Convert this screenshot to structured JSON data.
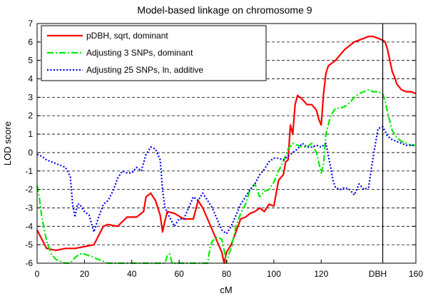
{
  "chart_data": {
    "type": "line",
    "title": "Model-based linkage on chromosome 9",
    "xlabel": "cM",
    "ylabel": "LOD score",
    "xlim": [
      0,
      160
    ],
    "ylim": [
      -6,
      7
    ],
    "x_ticks": [
      0,
      20,
      40,
      60,
      80,
      100,
      120,
      160
    ],
    "x_tick_labels": [
      "0",
      "20",
      "40",
      "60",
      "80",
      "100",
      "120",
      "160"
    ],
    "y_ticks": [
      -6,
      -5,
      -4,
      -3,
      -2,
      -1,
      0,
      1,
      2,
      3,
      4,
      5,
      6,
      7
    ],
    "y_tick_labels": [
      "-6",
      "-5",
      "-4",
      "-3",
      "-2",
      "-1",
      "0",
      "1",
      "2",
      "3",
      "4",
      "5",
      "6",
      "7"
    ],
    "grid": "horizontal dashed",
    "legend_position": "top-left",
    "marker_line": {
      "x": 146,
      "label": "DBH"
    },
    "colors": {
      "series1": "#ff0000",
      "series2": "#00ee00",
      "series3": "#0000ff"
    },
    "series": [
      {
        "name": "pDBH, sqrt, dominant",
        "style": "solid",
        "x": [
          0,
          4,
          8,
          12,
          16,
          20,
          24,
          26,
          28,
          30,
          34,
          38,
          42,
          45,
          46,
          48,
          50,
          52,
          53,
          54,
          55,
          58,
          62,
          66,
          68,
          70,
          72,
          74,
          76,
          78,
          79,
          80,
          81,
          82,
          84,
          86,
          88,
          90,
          92,
          94,
          96,
          98,
          100,
          102,
          104,
          105,
          106,
          107,
          108,
          109,
          110,
          111,
          112,
          114,
          116,
          118,
          119,
          120,
          121,
          122,
          123,
          124,
          126,
          128,
          130,
          132,
          134,
          136,
          138,
          140,
          142,
          144,
          146,
          147,
          148,
          149,
          150,
          151,
          152,
          154,
          156,
          158,
          160
        ],
        "y": [
          -4.2,
          -5.2,
          -5.3,
          -5.2,
          -5.2,
          -5.1,
          -5.0,
          -4.5,
          -4.0,
          -3.9,
          -4.0,
          -3.5,
          -3.5,
          -3.2,
          -2.4,
          -2.2,
          -2.6,
          -3.4,
          -4.3,
          -3.7,
          -3.2,
          -3.3,
          -3.6,
          -3.6,
          -2.6,
          -3.0,
          -3.6,
          -4.2,
          -4.8,
          -5.4,
          -6.0,
          -5.4,
          -5.2,
          -5.0,
          -4.3,
          -3.6,
          -3.5,
          -3.3,
          -3.2,
          -3.0,
          -3.2,
          -2.8,
          -2.9,
          -1.5,
          -1.2,
          -0.5,
          -0.4,
          1.5,
          1.0,
          2.6,
          3.1,
          3.0,
          2.9,
          2.6,
          2.6,
          2.3,
          1.8,
          1.5,
          3.2,
          4.3,
          4.7,
          4.8,
          5.0,
          5.3,
          5.6,
          5.8,
          6.0,
          6.1,
          6.2,
          6.3,
          6.3,
          6.2,
          6.1,
          6.0,
          5.6,
          5.0,
          4.4,
          4.1,
          3.7,
          3.4,
          3.3,
          3.3,
          3.2
        ]
      },
      {
        "name": "Adjusting 3 SNPs, dominant",
        "style": "dashdot",
        "x": [
          0,
          1,
          2,
          4,
          6,
          8,
          10,
          12,
          14,
          16,
          18,
          20,
          24,
          28,
          30,
          54,
          55,
          56,
          57,
          72,
          73,
          74,
          76,
          78,
          79,
          80,
          81,
          82,
          84,
          86,
          88,
          90,
          92,
          94,
          96,
          98,
          100,
          102,
          104,
          106,
          108,
          110,
          112,
          114,
          116,
          118,
          120,
          121,
          122,
          124,
          126,
          128,
          130,
          132,
          134,
          136,
          138,
          140,
          142,
          144,
          146,
          147,
          148,
          150,
          152,
          154,
          156,
          158,
          160
        ],
        "y": [
          -1.8,
          -2.5,
          -3.5,
          -4.8,
          -5.5,
          -5.8,
          -5.9,
          -6.0,
          -6.0,
          -5.7,
          -5.5,
          -5.5,
          -5.7,
          -5.9,
          -6.0,
          -6.0,
          -5.6,
          -5.5,
          -6.0,
          -6.0,
          -5.2,
          -4.8,
          -4.6,
          -4.7,
          -5.3,
          -6.0,
          -5.5,
          -5.2,
          -4.0,
          -3.3,
          -2.8,
          -2.0,
          -1.7,
          -2.4,
          -2.1,
          -2.0,
          -1.6,
          -1.0,
          -0.5,
          0.2,
          0.5,
          0.4,
          0.3,
          0.3,
          0.5,
          0.0,
          -1.1,
          -0.6,
          1.0,
          2.0,
          2.4,
          2.4,
          2.5,
          2.7,
          3.0,
          3.2,
          3.3,
          3.4,
          3.3,
          3.3,
          3.2,
          2.8,
          2.2,
          1.2,
          0.8,
          0.6,
          0.5,
          0.4,
          0.4
        ]
      },
      {
        "name": "Adjusting 25 SNPs, ln, additive",
        "style": "dotted",
        "x": [
          0,
          2,
          4,
          6,
          8,
          10,
          12,
          14,
          15,
          16,
          17,
          18,
          20,
          22,
          24,
          26,
          28,
          30,
          32,
          34,
          36,
          38,
          40,
          42,
          44,
          46,
          48,
          50,
          52,
          53,
          54,
          56,
          58,
          60,
          62,
          64,
          66,
          68,
          70,
          72,
          74,
          76,
          78,
          80,
          82,
          84,
          86,
          88,
          90,
          92,
          94,
          96,
          98,
          100,
          102,
          104,
          106,
          108,
          110,
          112,
          114,
          116,
          118,
          120,
          122,
          124,
          125,
          126,
          128,
          130,
          132,
          134,
          136,
          138,
          140,
          142,
          144,
          146,
          148,
          150,
          152,
          154,
          156,
          158,
          160
        ],
        "y": [
          -0.1,
          -0.2,
          -0.4,
          -0.5,
          -0.6,
          -0.7,
          -0.8,
          -1.3,
          -2.8,
          -3.5,
          -2.8,
          -2.8,
          -3.2,
          -3.4,
          -4.3,
          -3.5,
          -2.8,
          -2.6,
          -2.1,
          -1.4,
          -1.0,
          -1.1,
          -1.1,
          -0.8,
          -1.0,
          -0.1,
          0.3,
          0.2,
          -0.4,
          -2.0,
          -3.0,
          -3.5,
          -4.0,
          -3.6,
          -3.6,
          -3.0,
          -2.4,
          -2.6,
          -2.2,
          -2.6,
          -3.0,
          -3.6,
          -4.2,
          -4.4,
          -4.0,
          -3.4,
          -2.8,
          -2.4,
          -2.0,
          -1.7,
          -1.2,
          -0.9,
          -0.5,
          -0.3,
          -0.3,
          -0.4,
          -0.2,
          0.0,
          0.2,
          0.5,
          0.3,
          0.3,
          0.4,
          0.3,
          0.5,
          -0.8,
          -1.5,
          -1.9,
          -2.0,
          -1.9,
          -2.0,
          -2.3,
          -1.7,
          -2.0,
          -1.9,
          -0.2,
          1.3,
          1.4,
          0.9,
          0.7,
          0.6,
          0.5,
          0.4,
          0.4,
          0.4
        ]
      }
    ]
  }
}
